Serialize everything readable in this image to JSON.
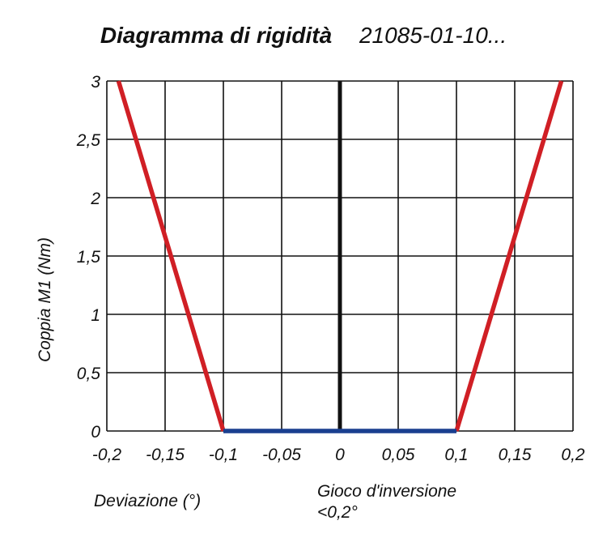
{
  "title": "Diagramma di rigidità",
  "subtitle": "21085-01-10...",
  "chart_data": {
    "type": "line",
    "xlabel": "Deviazione (°)",
    "ylabel": "Coppia M1 (Nm)",
    "xlim": [
      -0.2,
      0.2
    ],
    "ylim": [
      0,
      3
    ],
    "x_ticks": [
      "-0,2",
      "-0,15",
      "-0,1",
      "-0,05",
      "0",
      "0,05",
      "0,1",
      "0,15",
      "0,2"
    ],
    "y_ticks": [
      "0",
      "0,5",
      "1",
      "1,5",
      "2",
      "2,5",
      "3"
    ],
    "x_tick_values": [
      -0.2,
      -0.15,
      -0.1,
      -0.05,
      0,
      0.05,
      0.1,
      0.15,
      0.2
    ],
    "y_tick_values": [
      0,
      0.5,
      1,
      1.5,
      2,
      2.5,
      3
    ],
    "grid": true,
    "series": [
      {
        "color": "#d01f25",
        "points": [
          [
            -0.19,
            3
          ],
          [
            -0.1,
            0
          ]
        ]
      },
      {
        "color": "#d01f25",
        "points": [
          [
            0.1,
            0
          ],
          [
            0.19,
            3
          ]
        ]
      },
      {
        "color": "#1a3f8f",
        "points": [
          [
            -0.1,
            0
          ],
          [
            0.1,
            0
          ]
        ]
      }
    ],
    "zero_line_color": "#111111",
    "annotation": [
      "Gioco d'inversione",
      "<0,2°"
    ]
  }
}
